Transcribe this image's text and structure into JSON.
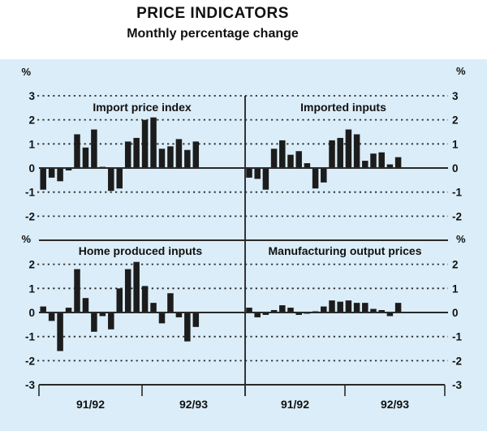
{
  "title": "PRICE INDICATORS",
  "subtitle": "Monthly percentage change",
  "colors": {
    "page_bg": "#ffffff",
    "plot_bg": "#daedf8",
    "bar": "#1c1c1c",
    "axis_line": "#2a2a2a",
    "grid_dash": "#2a2a2a",
    "text": "#111111"
  },
  "axis": {
    "percent_symbol": "%",
    "y_ticks_top_row": [
      "3",
      "2",
      "1",
      "0",
      "-1",
      "-2"
    ],
    "y_tick_values_top_row": [
      3,
      2,
      1,
      0,
      -1,
      -2
    ],
    "y_ticks_bottom_row": [
      "2",
      "1",
      "0",
      "-1",
      "-2",
      "-3"
    ],
    "y_tick_values_bottom_row": [
      2,
      1,
      0,
      -1,
      -2,
      -3
    ],
    "x_tick_labels": [
      "91/92",
      "92/93",
      "91/92",
      "92/93"
    ],
    "ylim_top_row": [
      -3,
      3
    ],
    "ylim_bottom_row": [
      -3,
      3
    ],
    "grid": "dashed horizontal at each integer, solid zero line"
  },
  "chart_data": [
    {
      "type": "bar",
      "position": "top-left",
      "title": "Import price index",
      "x_labels": [
        "91/92",
        "92/93"
      ],
      "ylim": [
        -3,
        3
      ],
      "unit": "percent, monthly change",
      "values": [
        -0.9,
        -0.4,
        -0.55,
        -0.1,
        1.4,
        0.85,
        1.6,
        0.05,
        -0.95,
        -0.85,
        1.1,
        1.25,
        2.0,
        2.1,
        0.8,
        0.9,
        1.2,
        0.75,
        1.1
      ]
    },
    {
      "type": "bar",
      "position": "top-right",
      "title": "Imported inputs",
      "x_labels": [
        "91/92",
        "92/93"
      ],
      "ylim": [
        -3,
        3
      ],
      "unit": "percent, monthly change",
      "values": [
        -0.4,
        -0.45,
        -0.9,
        0.8,
        1.15,
        0.55,
        0.7,
        0.2,
        -0.85,
        -0.6,
        1.15,
        1.25,
        1.6,
        1.4,
        0.3,
        0.6,
        0.65,
        0.15,
        0.45
      ]
    },
    {
      "type": "bar",
      "position": "bottom-left",
      "title": "Home produced inputs",
      "x_labels": [
        "91/92",
        "92/93"
      ],
      "ylim": [
        -3,
        3
      ],
      "unit": "percent, monthly change",
      "values": [
        0.25,
        -0.35,
        -1.6,
        0.2,
        1.8,
        0.6,
        -0.8,
        -0.15,
        -0.7,
        1.0,
        1.8,
        2.1,
        1.1,
        0.4,
        -0.45,
        0.8,
        -0.2,
        -1.2,
        -0.6
      ]
    },
    {
      "type": "bar",
      "position": "bottom-right",
      "title": "Manufacturing output prices",
      "x_labels": [
        "91/92",
        "92/93"
      ],
      "ylim": [
        -3,
        3
      ],
      "unit": "percent, monthly change",
      "values": [
        0.2,
        -0.2,
        -0.1,
        0.1,
        0.3,
        0.2,
        -0.1,
        -0.05,
        0.05,
        0.25,
        0.5,
        0.45,
        0.5,
        0.4,
        0.4,
        0.15,
        0.1,
        -0.15,
        0.4
      ]
    }
  ]
}
